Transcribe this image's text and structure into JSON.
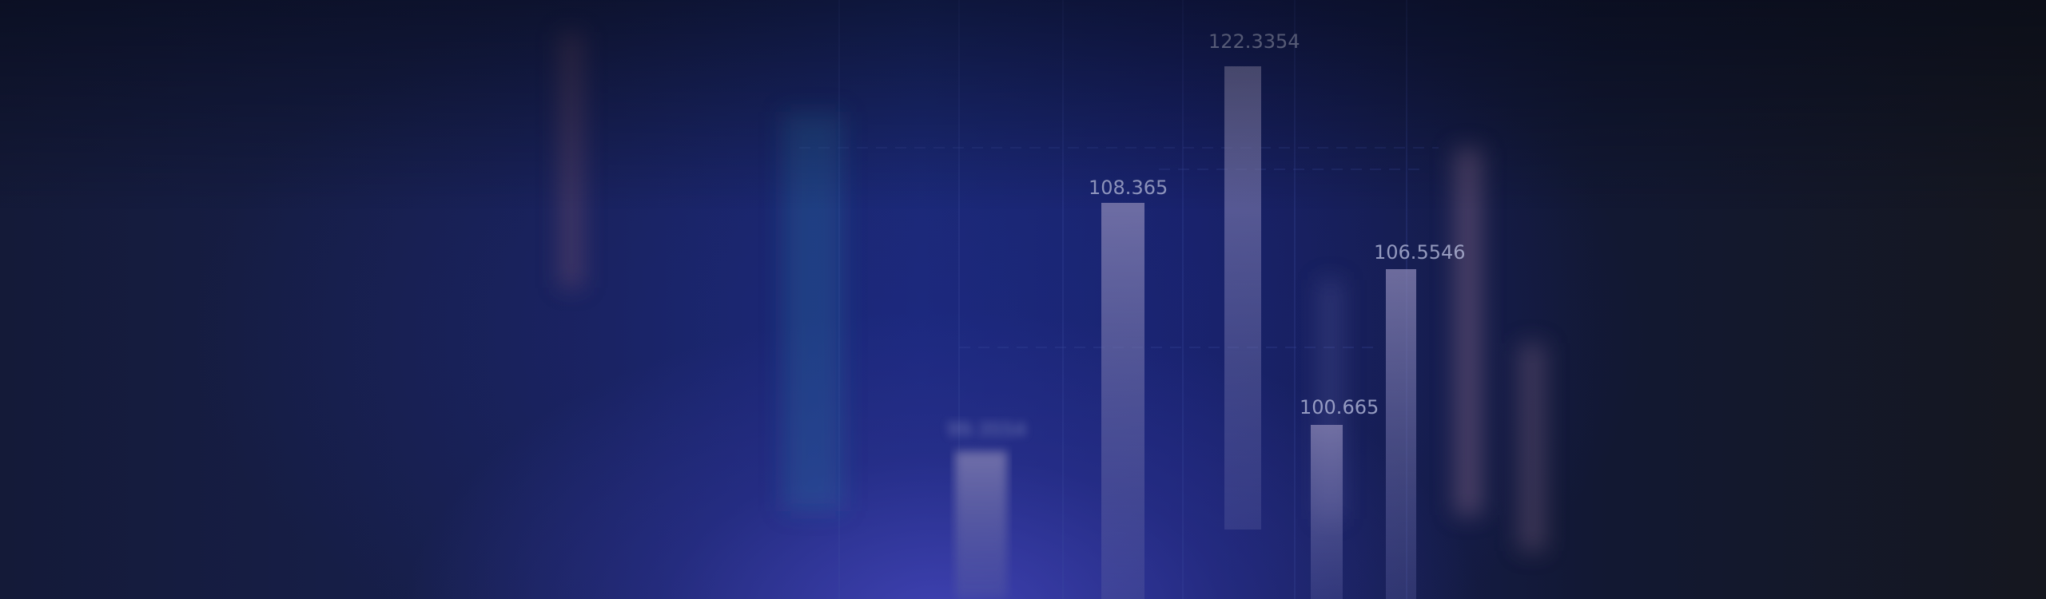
{
  "labels": {
    "v1": "99.3554",
    "v2": "108.365",
    "v3": "122.3354",
    "v4": "100.665",
    "v5": "106.5546"
  },
  "colors": {
    "bar": "#7c79a8",
    "grid": "#3a4aa0"
  }
}
